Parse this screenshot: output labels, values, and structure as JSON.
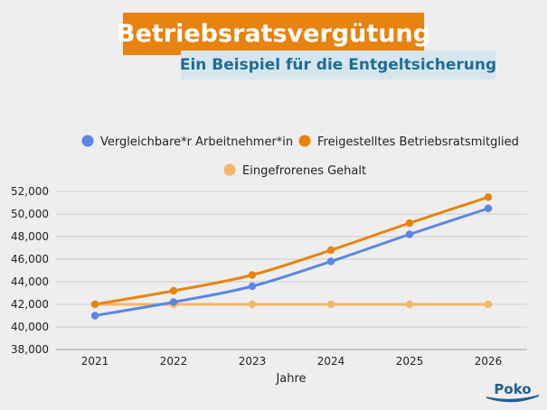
{
  "header": {
    "title": "Betriebsratsvergütung",
    "subtitle": "Ein Beispiel für die Entgeltsicherung"
  },
  "logo": {
    "text": "Poko"
  },
  "colors": {
    "title_bg": "#e8830f",
    "subtitle_bg": "#d7e6ee",
    "subtitle_text": "#1d6e97",
    "logo": "#1f5f92"
  },
  "chart_data": {
    "type": "line",
    "x": [
      2021,
      2022,
      2023,
      2024,
      2025,
      2026
    ],
    "xlabel": "Jahre",
    "ylabel": "",
    "ylim": [
      38000,
      52000
    ],
    "yticks": [
      "38,000",
      "40,000",
      "42,000",
      "44,000",
      "46,000",
      "48,000",
      "50,000",
      "52,000"
    ],
    "grid": true,
    "legend_position": "top",
    "series": [
      {
        "name": "Vergleichbare*r Arbeitnehmer*in",
        "color": "#5b86e5",
        "values": [
          41000,
          42200,
          43600,
          45800,
          48200,
          50500
        ]
      },
      {
        "name": "Freigestelltes Betriebsratsmitglied",
        "color": "#e8830f",
        "values": [
          42000,
          43200,
          44600,
          46800,
          49200,
          51500
        ]
      },
      {
        "name": "Eingefrorenes Gehalt",
        "color": "#f3b66b",
        "values": [
          42000,
          42000,
          42000,
          42000,
          42000,
          42000
        ]
      }
    ]
  }
}
